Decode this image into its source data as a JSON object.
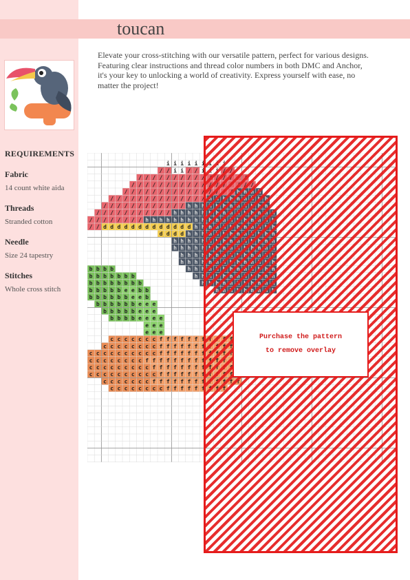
{
  "title": "toucan",
  "description": "Elevate your cross-stitching with our versatile pattern, perfect for various designs. Featuring clear instructions and thread color numbers in both DMC and Anchor, it's your key to unlocking a world of creativity. Express yourself with ease, no matter the project!",
  "requirements": {
    "heading": "REQUIREMENTS",
    "items": [
      {
        "label": "Fabric",
        "value": "14 count white aida"
      },
      {
        "label": "Threads",
        "value": "Stranded cotton"
      },
      {
        "label": "Needle",
        "value": "Size 24 tapestry"
      },
      {
        "label": "Stitches",
        "value": "Whole cross stitch"
      }
    ]
  },
  "overlay": {
    "line1": "Purchase the pattern",
    "line2": "to remove overlay"
  },
  "colors": {
    "sidebar": "#fde0df",
    "title_band": "#f9c9c6",
    "overlay_red": "#e51b1b",
    "symbol_slash": "#e8666e",
    "symbol_d": "#f4cd4e",
    "symbol_h": "#4a5565",
    "symbol_b": "#7ac15c",
    "symbol_e": "#8cd26d",
    "symbol_c": "#e98c55",
    "symbol_f": "#f4a06a"
  },
  "pattern_rows": [
    "...........iiiiiiiii.......",
    "..........//ii//iii//......",
    ".......////////////////....",
    "......//////////////////...",
    ".....////////////////hhhh..",
    "...//////////////hhhhhhhhh.",
    "..////////////hhhhhhhhhhhh.",
    ".///////////hhhhhhhhhhhhhhh",
    "////////hhhhhhhhhhhhhhhhhhh",
    "//dddddddddddddhhhhhhhhhhhh",
    "..........ddddhhhhhhhhhhhhh",
    "............hhhhhhhhhhhhhhh",
    "............hhhhhhhhhhhhhhh",
    ".............hhhhhhhhhhhhhh",
    ".............hhhhhhhhhhhhhh",
    "bbbb..........hhhhhhhhhhhhh",
    "bbbbbbb........hhhhhhhhhhhh",
    "bbbbbbbb........hhhhhhhhhhh",
    "bbbbbeebb.........hhhhhhhhh",
    "bbbbbbeeb..................",
    ".bbbbbbeee.................",
    "..bbbbbeee.................",
    "...bbbbeeee................",
    "........eee................",
    "........eee................",
    "...cccccccfffffffffffffffff",
    "..ccccccccfffffffffffffffff",
    "ccccccccccfffffffffffffffff",
    "ccccccccffffffffffffffffff.",
    "cccccccccffffffffffffffff..",
    "ccccccccccffffffffffffff...",
    "..cccccccfffffffffffff.....",
    "...ccccccccfffffffff.......",
    "...........................",
    "...........................",
    "..........................."
  ]
}
